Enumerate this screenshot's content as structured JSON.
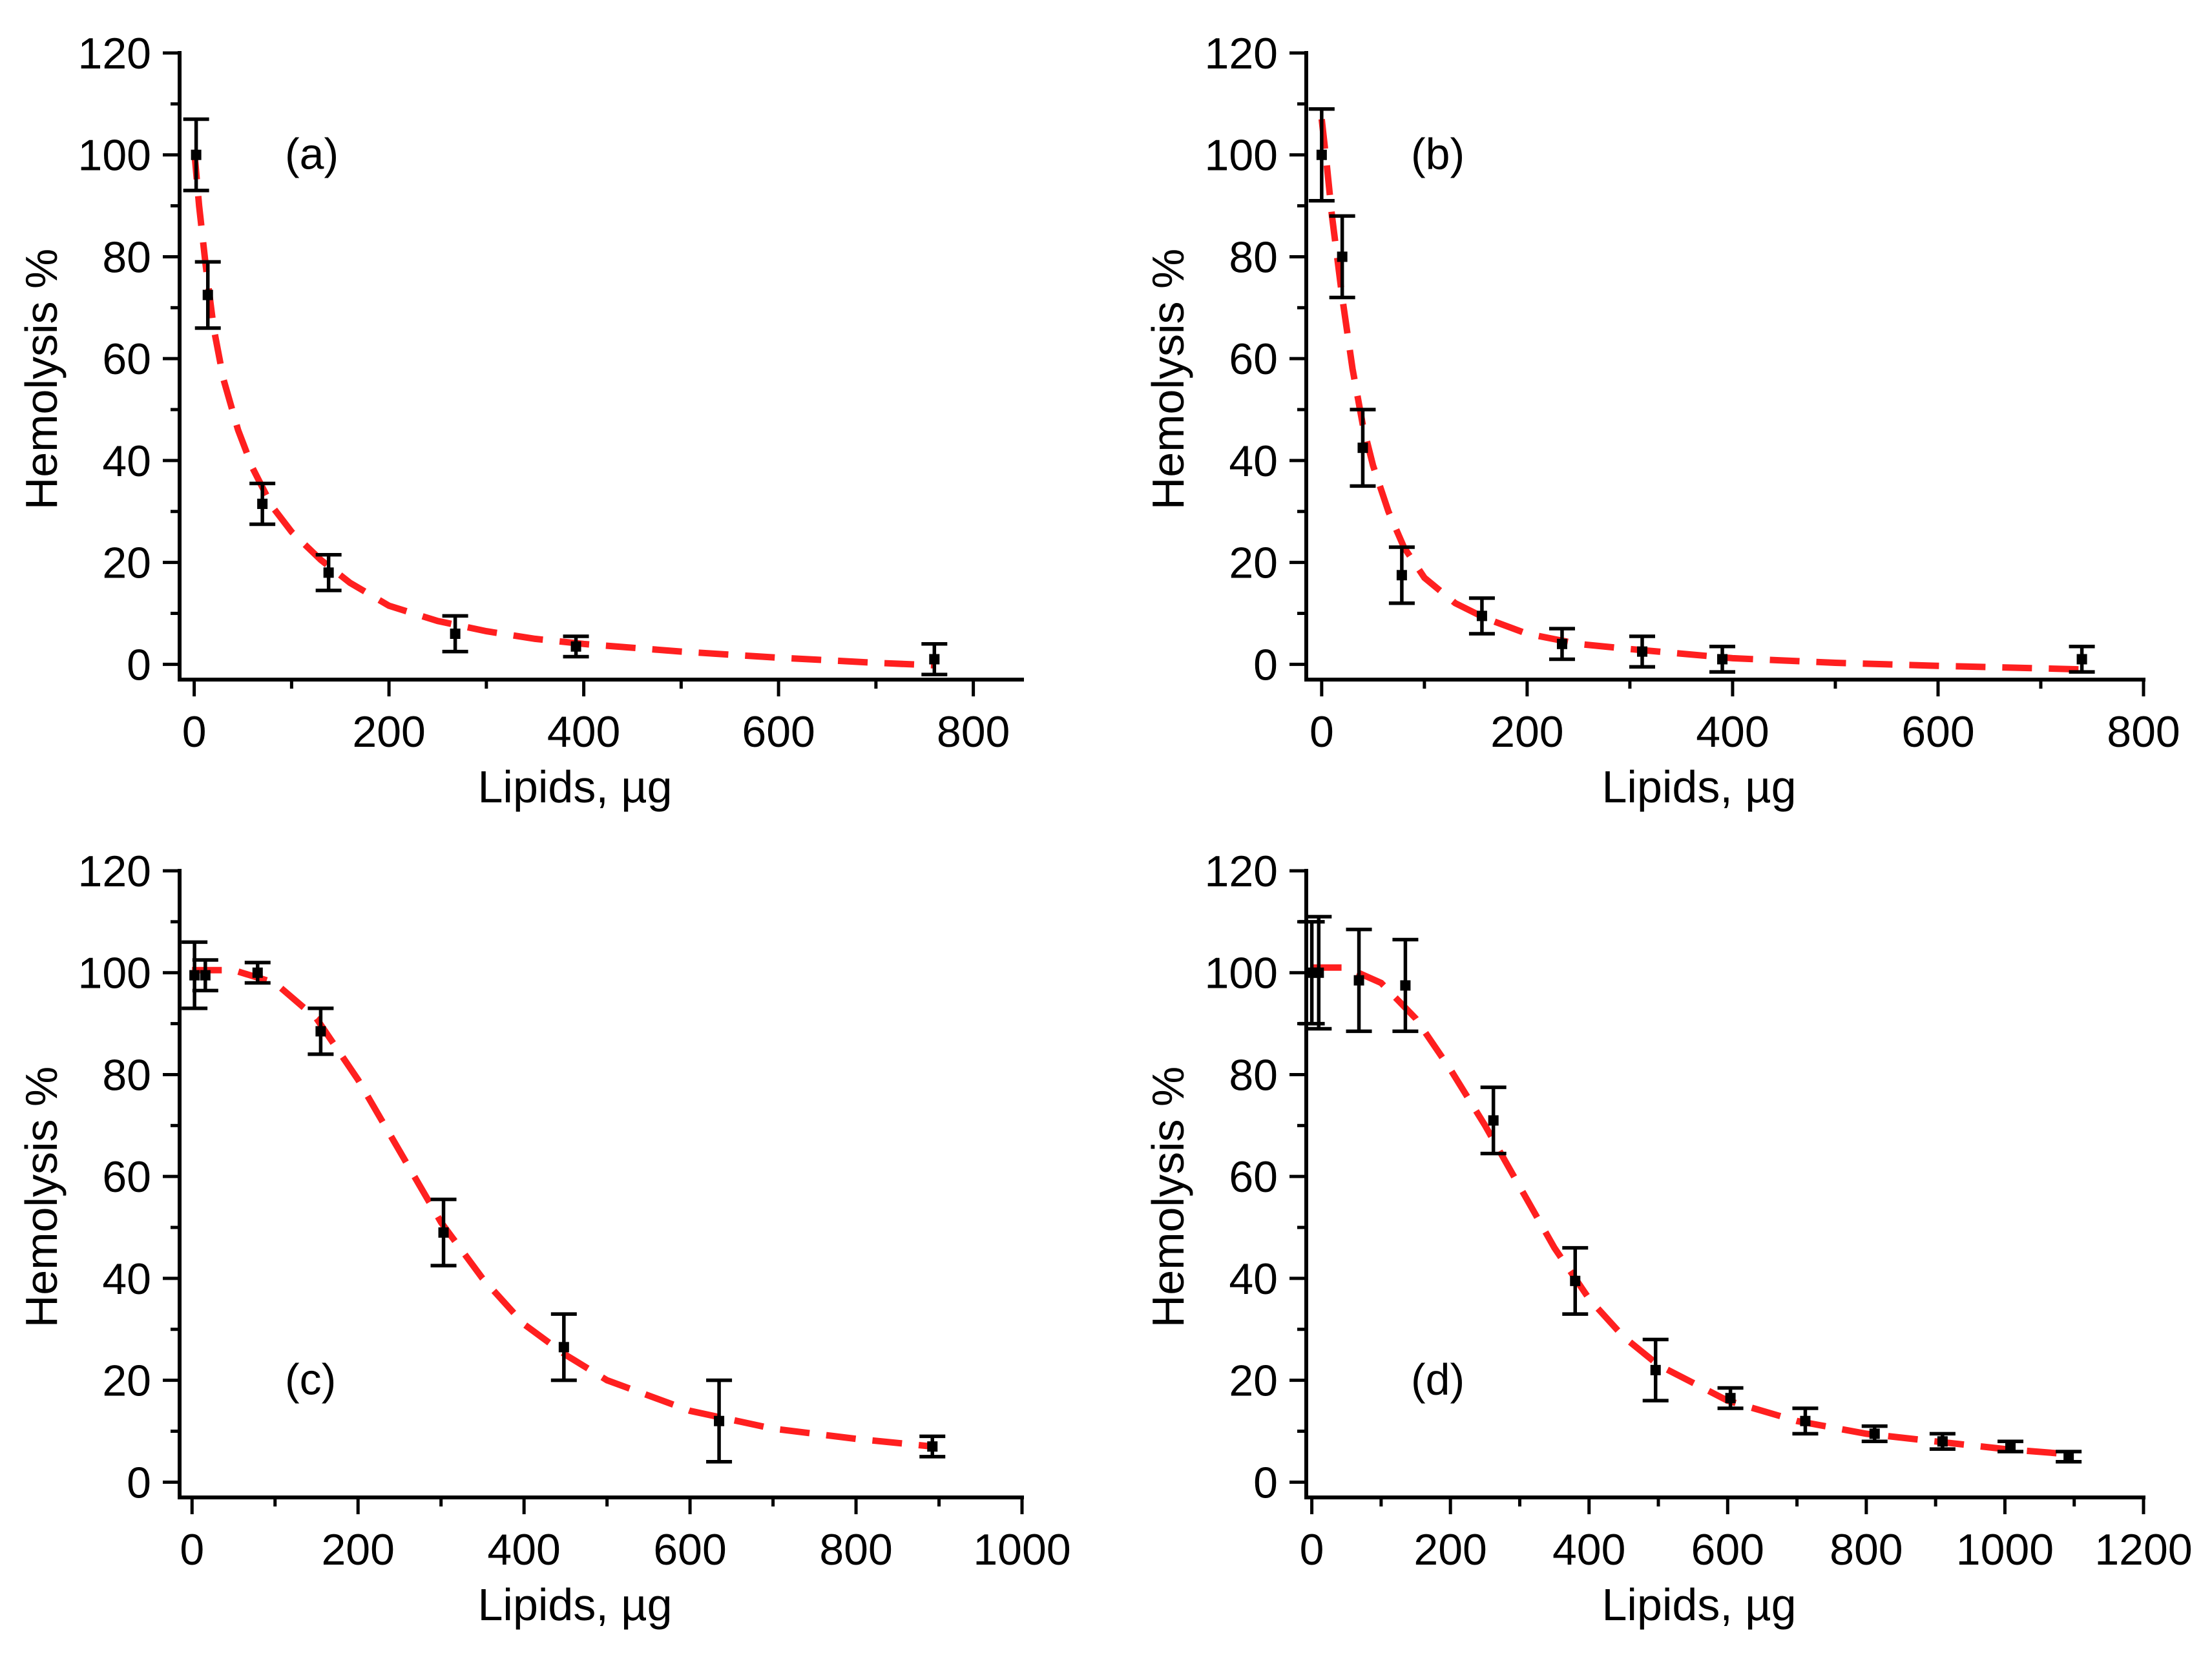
{
  "chart_data": [
    {
      "type": "scatter",
      "panel_label": "(a)",
      "xlabel": "Lipids, µg",
      "ylabel": "Hemolysis %",
      "xlim": [
        -15,
        850
      ],
      "ylim": [
        -3,
        120
      ],
      "xticks": [
        0,
        200,
        400,
        600,
        800
      ],
      "yticks": [
        0,
        20,
        40,
        60,
        80,
        100,
        120
      ],
      "label_position": "top-left",
      "points": [
        {
          "x": 2,
          "y": 100,
          "err": 7
        },
        {
          "x": 14,
          "y": 72.5,
          "err": 6.5
        },
        {
          "x": 70,
          "y": 31.5,
          "err": 4
        },
        {
          "x": 138,
          "y": 18,
          "err": 3.5
        },
        {
          "x": 268,
          "y": 6,
          "err": 3.5
        },
        {
          "x": 392,
          "y": 3.5,
          "err": 2
        },
        {
          "x": 760,
          "y": 1,
          "err": 3
        }
      ],
      "fit": {
        "style": "dashed",
        "color": "#ff1f1f",
        "x": [
          0,
          5,
          12,
          20,
          30,
          45,
          60,
          80,
          100,
          130,
          160,
          200,
          250,
          300,
          350,
          400,
          500,
          600,
          700,
          760
        ],
        "y": [
          101,
          90,
          78,
          66,
          56,
          46,
          38.5,
          31,
          26,
          20.5,
          16,
          11.5,
          8.5,
          6.5,
          5,
          4,
          2.5,
          1.3,
          0.3,
          -0.2
        ]
      }
    },
    {
      "type": "scatter",
      "panel_label": "(b)",
      "xlabel": "Lipids, µg",
      "ylabel": "Hemolysis %",
      "xlim": [
        -15,
        800
      ],
      "ylim": [
        -3,
        120
      ],
      "xticks": [
        0,
        200,
        400,
        600,
        800
      ],
      "yticks": [
        0,
        20,
        40,
        60,
        80,
        100,
        120
      ],
      "label_position": "top-left",
      "points": [
        {
          "x": 0,
          "y": 100,
          "err": 9
        },
        {
          "x": 20,
          "y": 80,
          "err": 8
        },
        {
          "x": 40,
          "y": 42.5,
          "err": 7.5
        },
        {
          "x": 78,
          "y": 17.5,
          "err": 5.5
        },
        {
          "x": 156,
          "y": 9.5,
          "err": 3.5
        },
        {
          "x": 234,
          "y": 4,
          "err": 3
        },
        {
          "x": 312,
          "y": 2.5,
          "err": 3
        },
        {
          "x": 390,
          "y": 1,
          "err": 2.5
        },
        {
          "x": 740,
          "y": 1,
          "err": 2.5
        }
      ],
      "fit": {
        "style": "dashed",
        "color": "#ff1f1f",
        "x": [
          0,
          5,
          10,
          20,
          30,
          40,
          50,
          65,
          80,
          100,
          130,
          160,
          200,
          250,
          300,
          400,
          500,
          600,
          740
        ],
        "y": [
          107,
          98,
          88,
          72,
          58,
          47,
          39,
          30,
          23,
          17,
          12,
          9,
          6,
          4,
          3,
          1.2,
          0.3,
          -0.3,
          -1
        ]
      }
    },
    {
      "type": "scatter",
      "panel_label": "(c)",
      "xlabel": "Lipids, µg",
      "ylabel": "Hemolysis %",
      "xlim": [
        -15,
        1000
      ],
      "ylim": [
        -3,
        120
      ],
      "xticks": [
        0,
        200,
        400,
        600,
        800,
        1000
      ],
      "yticks": [
        0,
        20,
        40,
        60,
        80,
        100,
        120
      ],
      "label_position": "bottom-left",
      "points": [
        {
          "x": 3,
          "y": 99.5,
          "err": 6.5
        },
        {
          "x": 16,
          "y": 99.5,
          "err": 3
        },
        {
          "x": 79,
          "y": 100,
          "err": 2
        },
        {
          "x": 155,
          "y": 88.5,
          "err": 4.5
        },
        {
          "x": 303,
          "y": 49,
          "err": 6.5
        },
        {
          "x": 448,
          "y": 26.5,
          "err": 6.5
        },
        {
          "x": 635,
          "y": 12,
          "err": 8
        },
        {
          "x": 892,
          "y": 7,
          "err": 2
        }
      ],
      "fit": {
        "style": "dashed",
        "color": "#ff1f1f",
        "x": [
          0,
          50,
          100,
          150,
          200,
          250,
          300,
          350,
          400,
          450,
          500,
          600,
          700,
          800,
          892
        ],
        "y": [
          100.5,
          100.5,
          98,
          91,
          79,
          65,
          51,
          40,
          31,
          25,
          20,
          14,
          10.5,
          8.5,
          7
        ]
      }
    },
    {
      "type": "scatter",
      "panel_label": "(d)",
      "xlabel": "Lipids, µg",
      "ylabel": "Hemolysis %",
      "xlim": [
        -8,
        1200
      ],
      "ylim": [
        -3,
        120
      ],
      "xticks": [
        0,
        200,
        400,
        600,
        800,
        1000,
        1200
      ],
      "yticks": [
        0,
        20,
        40,
        60,
        80,
        100,
        120
      ],
      "label_position": "bottom-left",
      "points": [
        {
          "x": 0,
          "y": 100,
          "err": 10
        },
        {
          "x": 10,
          "y": 100,
          "err": 11
        },
        {
          "x": 68,
          "y": 98.5,
          "err": 10
        },
        {
          "x": 135,
          "y": 97.5,
          "err": 9
        },
        {
          "x": 262,
          "y": 71,
          "err": 6.5
        },
        {
          "x": 380,
          "y": 39.5,
          "err": 6.5
        },
        {
          "x": 496,
          "y": 22,
          "err": 6
        },
        {
          "x": 604,
          "y": 16.5,
          "err": 2
        },
        {
          "x": 712,
          "y": 12,
          "err": 2.5
        },
        {
          "x": 812,
          "y": 9.5,
          "err": 1.5
        },
        {
          "x": 910,
          "y": 8,
          "err": 1.5
        },
        {
          "x": 1008,
          "y": 7,
          "err": 1
        },
        {
          "x": 1092,
          "y": 5,
          "err": 1
        }
      ],
      "fit": {
        "style": "dashed",
        "color": "#ff1f1f",
        "x": [
          0,
          50,
          100,
          150,
          200,
          250,
          300,
          350,
          400,
          450,
          500,
          600,
          700,
          800,
          900,
          1000,
          1092
        ],
        "y": [
          101,
          101,
          98,
          91,
          81,
          70,
          58,
          46,
          36,
          28.5,
          23,
          16,
          12,
          9.5,
          8,
          6.5,
          5.5
        ]
      }
    }
  ]
}
